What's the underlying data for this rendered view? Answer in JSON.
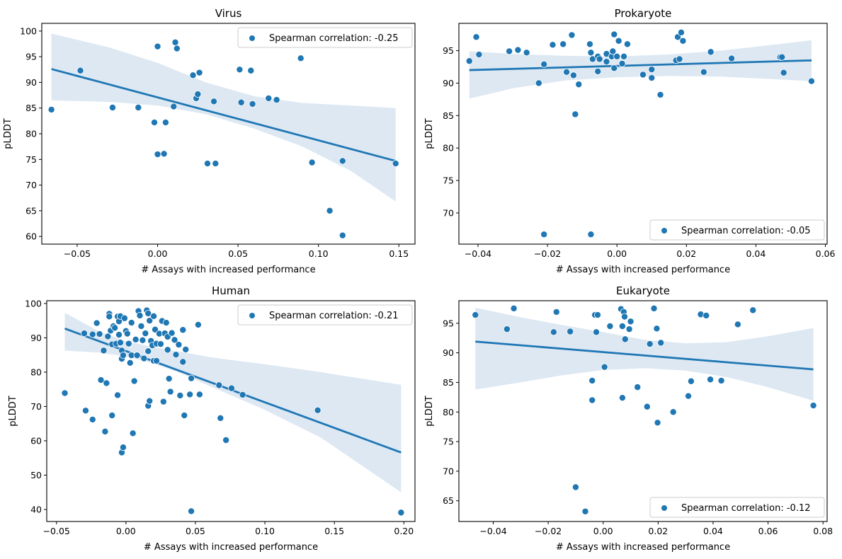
{
  "figure": {
    "point_color": "#1f77b4",
    "band_color": "#dde8f3",
    "line_color": "#1f77b4"
  },
  "chart_data": [
    {
      "type": "scatter",
      "title": "Virus",
      "xlabel": "# Assays with increased performance",
      "ylabel": "pLDDT",
      "xlim": [
        -0.072,
        0.16
      ],
      "ylim": [
        58.5,
        101.5
      ],
      "xticks": [
        -0.05,
        0.0,
        0.05,
        0.1,
        0.15
      ],
      "xtick_labels": [
        "−0.05",
        "0.00",
        "0.05",
        "0.10",
        "0.15"
      ],
      "yticks": [
        60,
        65,
        70,
        75,
        80,
        85,
        90,
        95,
        100
      ],
      "ytick_labels": [
        "60",
        "65",
        "70",
        "75",
        "80",
        "85",
        "90",
        "95",
        "100"
      ],
      "legend": {
        "label": "Spearman correlation: -0.25",
        "position": "upper-right"
      },
      "regression": {
        "x": [
          -0.066,
          0.148
        ],
        "y": [
          92.6,
          74.7
        ]
      },
      "ci_band": {
        "x": [
          -0.066,
          -0.03,
          0.0,
          0.03,
          0.06,
          0.09,
          0.12,
          0.148
        ],
        "lower": [
          86.5,
          86.2,
          85.5,
          83.8,
          81.0,
          77.5,
          72.8,
          66.8
        ],
        "upper": [
          99.5,
          96.8,
          93.8,
          90.0,
          87.3,
          86.0,
          85.5,
          85.0
        ]
      },
      "points": [
        {
          "x": -0.066,
          "y": 84.7
        },
        {
          "x": -0.048,
          "y": 92.3
        },
        {
          "x": -0.028,
          "y": 85.1
        },
        {
          "x": -0.012,
          "y": 85.1
        },
        {
          "x": -0.002,
          "y": 82.2
        },
        {
          "x": 0.0,
          "y": 97.0
        },
        {
          "x": 0.0,
          "y": 76.0
        },
        {
          "x": 0.004,
          "y": 76.1
        },
        {
          "x": 0.005,
          "y": 82.2
        },
        {
          "x": 0.01,
          "y": 85.3
        },
        {
          "x": 0.011,
          "y": 97.8
        },
        {
          "x": 0.012,
          "y": 96.6
        },
        {
          "x": 0.022,
          "y": 91.4
        },
        {
          "x": 0.024,
          "y": 86.9
        },
        {
          "x": 0.025,
          "y": 87.7
        },
        {
          "x": 0.026,
          "y": 91.9
        },
        {
          "x": 0.031,
          "y": 74.2
        },
        {
          "x": 0.035,
          "y": 86.3
        },
        {
          "x": 0.036,
          "y": 74.2
        },
        {
          "x": 0.051,
          "y": 92.5
        },
        {
          "x": 0.052,
          "y": 86.1
        },
        {
          "x": 0.058,
          "y": 92.3
        },
        {
          "x": 0.059,
          "y": 85.8
        },
        {
          "x": 0.069,
          "y": 86.9
        },
        {
          "x": 0.074,
          "y": 86.6
        },
        {
          "x": 0.089,
          "y": 94.7
        },
        {
          "x": 0.096,
          "y": 74.4
        },
        {
          "x": 0.107,
          "y": 65.0
        },
        {
          "x": 0.115,
          "y": 74.7
        },
        {
          "x": 0.115,
          "y": 60.2
        },
        {
          "x": 0.148,
          "y": 74.2
        }
      ]
    },
    {
      "type": "scatter",
      "title": "Prokaryote",
      "xlabel": "# Assays with increased performance",
      "ylabel": "pLDDT",
      "xlim": [
        -0.0455,
        0.0605
      ],
      "ylim": [
        65.2,
        99.2
      ],
      "xticks": [
        -0.04,
        -0.02,
        0.0,
        0.02,
        0.04,
        0.06
      ],
      "xtick_labels": [
        "−0.04",
        "−0.02",
        "0.00",
        "0.02",
        "0.04",
        "0.06"
      ],
      "yticks": [
        70,
        75,
        80,
        85,
        90,
        95
      ],
      "ytick_labels": [
        "70",
        "75",
        "80",
        "85",
        "90",
        "95"
      ],
      "legend": {
        "label": "Spearman correlation: -0.05",
        "position": "lower-right"
      },
      "regression": {
        "x": [
          -0.0425,
          0.056
        ],
        "y": [
          92.0,
          93.5
        ]
      },
      "ci_band": {
        "x": [
          -0.0425,
          -0.03,
          -0.015,
          0.0,
          0.015,
          0.03,
          0.045,
          0.056
        ],
        "lower": [
          87.6,
          89.2,
          90.4,
          90.9,
          91.1,
          91.0,
          90.6,
          90.3
        ],
        "upper": [
          94.9,
          94.5,
          94.2,
          94.1,
          94.4,
          95.0,
          95.9,
          96.6
        ]
      },
      "points": [
        {
          "x": -0.0425,
          "y": 93.4
        },
        {
          "x": -0.0405,
          "y": 97.1
        },
        {
          "x": -0.0397,
          "y": 94.4
        },
        {
          "x": -0.031,
          "y": 94.9
        },
        {
          "x": -0.0285,
          "y": 95.1
        },
        {
          "x": -0.026,
          "y": 94.7
        },
        {
          "x": -0.0225,
          "y": 90.0
        },
        {
          "x": -0.021,
          "y": 92.9
        },
        {
          "x": -0.021,
          "y": 66.7
        },
        {
          "x": -0.0185,
          "y": 95.9
        },
        {
          "x": -0.0155,
          "y": 96.0
        },
        {
          "x": -0.0145,
          "y": 91.7
        },
        {
          "x": -0.013,
          "y": 97.4
        },
        {
          "x": -0.0125,
          "y": 91.2
        },
        {
          "x": -0.012,
          "y": 85.2
        },
        {
          "x": -0.011,
          "y": 89.8
        },
        {
          "x": -0.0078,
          "y": 96.0
        },
        {
          "x": -0.0075,
          "y": 94.7
        },
        {
          "x": -0.007,
          "y": 93.7
        },
        {
          "x": -0.0075,
          "y": 66.7
        },
        {
          "x": -0.0055,
          "y": 94.1
        },
        {
          "x": -0.0055,
          "y": 91.8
        },
        {
          "x": -0.005,
          "y": 93.7
        },
        {
          "x": -0.003,
          "y": 93.3
        },
        {
          "x": -0.003,
          "y": 94.5
        },
        {
          "x": -0.0015,
          "y": 94.1
        },
        {
          "x": -0.0012,
          "y": 94.9
        },
        {
          "x": -0.0008,
          "y": 97.5
        },
        {
          "x": -0.0008,
          "y": 92.3
        },
        {
          "x": 0.0,
          "y": 94.1
        },
        {
          "x": 0.0005,
          "y": 96.5
        },
        {
          "x": 0.0015,
          "y": 93.0
        },
        {
          "x": 0.002,
          "y": 94.1
        },
        {
          "x": 0.003,
          "y": 96.0
        },
        {
          "x": 0.0075,
          "y": 91.3
        },
        {
          "x": 0.01,
          "y": 92.1
        },
        {
          "x": 0.01,
          "y": 90.8
        },
        {
          "x": 0.0125,
          "y": 88.2
        },
        {
          "x": 0.017,
          "y": 93.5
        },
        {
          "x": 0.0175,
          "y": 97.1
        },
        {
          "x": 0.018,
          "y": 93.7
        },
        {
          "x": 0.0185,
          "y": 97.8
        },
        {
          "x": 0.019,
          "y": 96.5
        },
        {
          "x": 0.025,
          "y": 91.7
        },
        {
          "x": 0.027,
          "y": 94.8
        },
        {
          "x": 0.033,
          "y": 93.8
        },
        {
          "x": 0.047,
          "y": 94.0
        },
        {
          "x": 0.0475,
          "y": 94.0
        },
        {
          "x": 0.048,
          "y": 91.6
        },
        {
          "x": 0.056,
          "y": 90.3
        }
      ]
    },
    {
      "type": "scatter",
      "title": "Human",
      "xlabel": "# Assays with increased performance",
      "ylabel": "pLDDT",
      "xlim": [
        -0.057,
        0.208
      ],
      "ylim": [
        36.5,
        100.8
      ],
      "xticks": [
        -0.05,
        0.0,
        0.05,
        0.1,
        0.15,
        0.2
      ],
      "xtick_labels": [
        "−0.05",
        "0.00",
        "0.05",
        "0.10",
        "0.15",
        "0.20"
      ],
      "yticks": [
        40,
        50,
        60,
        70,
        80,
        90,
        100
      ],
      "ytick_labels": [
        "40",
        "50",
        "60",
        "70",
        "80",
        "90",
        "100"
      ],
      "legend": {
        "label": "Spearman correlation: -0.21",
        "position": "upper-right"
      },
      "regression": {
        "x": [
          -0.044,
          0.198
        ],
        "y": [
          92.7,
          56.6
        ]
      },
      "ci_band": {
        "x": [
          -0.044,
          -0.02,
          0.0,
          0.02,
          0.04,
          0.06,
          0.08,
          0.1,
          0.14,
          0.198
        ],
        "lower": [
          86.3,
          85.7,
          84.6,
          82.5,
          79.6,
          76.0,
          72.5,
          69.0,
          61.0,
          45.0
        ],
        "upper": [
          97.3,
          92.0,
          89.0,
          87.3,
          85.9,
          84.4,
          83.3,
          82.3,
          80.0,
          76.3
        ]
      },
      "points": [
        {
          "x": -0.044,
          "y": 73.9
        },
        {
          "x": -0.03,
          "y": 91.3
        },
        {
          "x": -0.029,
          "y": 68.8
        },
        {
          "x": -0.024,
          "y": 91.0
        },
        {
          "x": -0.024,
          "y": 66.2
        },
        {
          "x": -0.021,
          "y": 94.3
        },
        {
          "x": -0.019,
          "y": 91.1
        },
        {
          "x": -0.018,
          "y": 77.7
        },
        {
          "x": -0.016,
          "y": 86.3
        },
        {
          "x": -0.015,
          "y": 62.7
        },
        {
          "x": -0.014,
          "y": 76.8
        },
        {
          "x": -0.013,
          "y": 90.4
        },
        {
          "x": -0.012,
          "y": 97.0
        },
        {
          "x": -0.012,
          "y": 96.2
        },
        {
          "x": -0.011,
          "y": 92.1
        },
        {
          "x": -0.01,
          "y": 88.1
        },
        {
          "x": -0.01,
          "y": 67.4
        },
        {
          "x": -0.009,
          "y": 93.4
        },
        {
          "x": -0.008,
          "y": 92.9
        },
        {
          "x": -0.007,
          "y": 88.3
        },
        {
          "x": -0.006,
          "y": 96.2
        },
        {
          "x": -0.006,
          "y": 73.3
        },
        {
          "x": -0.005,
          "y": 94.8
        },
        {
          "x": -0.005,
          "y": 90.9
        },
        {
          "x": -0.004,
          "y": 88.6
        },
        {
          "x": -0.004,
          "y": 96.3
        },
        {
          "x": -0.003,
          "y": 86.3
        },
        {
          "x": -0.003,
          "y": 83.9
        },
        {
          "x": -0.002,
          "y": 84.9
        },
        {
          "x": -0.003,
          "y": 56.6
        },
        {
          "x": -0.002,
          "y": 58.1
        },
        {
          "x": -0.001,
          "y": 95.7
        },
        {
          "x": 0.0,
          "y": 92.0
        },
        {
          "x": 0.001,
          "y": 91.2
        },
        {
          "x": 0.002,
          "y": 88.3
        },
        {
          "x": 0.003,
          "y": 82.7
        },
        {
          "x": 0.004,
          "y": 94.4
        },
        {
          "x": 0.004,
          "y": 84.9
        },
        {
          "x": 0.005,
          "y": 62.2
        },
        {
          "x": 0.006,
          "y": 77.4
        },
        {
          "x": 0.007,
          "y": 89.5
        },
        {
          "x": 0.008,
          "y": 84.9
        },
        {
          "x": 0.009,
          "y": 97.8
        },
        {
          "x": 0.01,
          "y": 96.5
        },
        {
          "x": 0.011,
          "y": 93.4
        },
        {
          "x": 0.012,
          "y": 89.3
        },
        {
          "x": 0.013,
          "y": 84.0
        },
        {
          "x": 0.014,
          "y": 91.3
        },
        {
          "x": 0.015,
          "y": 98.0
        },
        {
          "x": 0.016,
          "y": 97.1
        },
        {
          "x": 0.016,
          "y": 86.1
        },
        {
          "x": 0.016,
          "y": 70.2
        },
        {
          "x": 0.017,
          "y": 71.6
        },
        {
          "x": 0.017,
          "y": 95.0
        },
        {
          "x": 0.018,
          "y": 89.1
        },
        {
          "x": 0.019,
          "y": 87.8
        },
        {
          "x": 0.02,
          "y": 83.3
        },
        {
          "x": 0.02,
          "y": 96.3
        },
        {
          "x": 0.021,
          "y": 92.4
        },
        {
          "x": 0.022,
          "y": 88.3
        },
        {
          "x": 0.022,
          "y": 83.3
        },
        {
          "x": 0.024,
          "y": 91.2
        },
        {
          "x": 0.025,
          "y": 88.2
        },
        {
          "x": 0.026,
          "y": 94.9
        },
        {
          "x": 0.027,
          "y": 71.4
        },
        {
          "x": 0.028,
          "y": 91.3
        },
        {
          "x": 0.029,
          "y": 94.4
        },
        {
          "x": 0.03,
          "y": 90.3
        },
        {
          "x": 0.03,
          "y": 86.5
        },
        {
          "x": 0.031,
          "y": 78.1
        },
        {
          "x": 0.032,
          "y": 74.3
        },
        {
          "x": 0.033,
          "y": 91.4
        },
        {
          "x": 0.035,
          "y": 89.4
        },
        {
          "x": 0.036,
          "y": 85.1
        },
        {
          "x": 0.038,
          "y": 88.0
        },
        {
          "x": 0.039,
          "y": 73.2
        },
        {
          "x": 0.041,
          "y": 92.3
        },
        {
          "x": 0.041,
          "y": 83.0
        },
        {
          "x": 0.042,
          "y": 67.4
        },
        {
          "x": 0.043,
          "y": 86.6
        },
        {
          "x": 0.046,
          "y": 73.5
        },
        {
          "x": 0.047,
          "y": 78.2
        },
        {
          "x": 0.047,
          "y": 39.5
        },
        {
          "x": 0.052,
          "y": 93.8
        },
        {
          "x": 0.053,
          "y": 73.5
        },
        {
          "x": 0.067,
          "y": 76.2
        },
        {
          "x": 0.068,
          "y": 66.6
        },
        {
          "x": 0.072,
          "y": 60.2
        },
        {
          "x": 0.076,
          "y": 75.3
        },
        {
          "x": 0.084,
          "y": 73.4
        },
        {
          "x": 0.138,
          "y": 68.9
        },
        {
          "x": 0.198,
          "y": 39.1
        }
      ]
    },
    {
      "type": "scatter",
      "title": "Eukaryote",
      "xlabel": "# Assays with increased performance",
      "ylabel": "pLDDT",
      "xlim": [
        -0.0525,
        0.0815
      ],
      "ylim": [
        61.5,
        98.8
      ],
      "xticks": [
        -0.04,
        -0.02,
        0.0,
        0.02,
        0.04,
        0.06,
        0.08
      ],
      "xtick_labels": [
        "−0.04",
        "−0.02",
        "0.00",
        "0.02",
        "0.04",
        "0.06",
        "0.08"
      ],
      "yticks": [
        65,
        70,
        75,
        80,
        85,
        90,
        95
      ],
      "ytick_labels": [
        "65",
        "70",
        "75",
        "80",
        "85",
        "90",
        "95"
      ],
      "legend": {
        "label": "Spearman correlation: -0.12",
        "position": "lower-right"
      },
      "regression": {
        "x": [
          -0.0465,
          0.0765
        ],
        "y": [
          91.9,
          87.2
        ]
      },
      "ci_band": {
        "x": [
          -0.0465,
          -0.03,
          -0.015,
          0.0,
          0.015,
          0.03,
          0.045,
          0.06,
          0.0765
        ],
        "lower": [
          83.8,
          85.0,
          86.2,
          87.1,
          87.4,
          87.0,
          85.9,
          84.2,
          81.9
        ],
        "upper": [
          97.6,
          96.0,
          94.7,
          93.5,
          92.2,
          91.6,
          91.8,
          92.8,
          94.2
        ]
      },
      "points": [
        {
          "x": -0.0465,
          "y": 96.4
        },
        {
          "x": -0.035,
          "y": 94.0
        },
        {
          "x": -0.0325,
          "y": 97.5
        },
        {
          "x": -0.018,
          "y": 93.5
        },
        {
          "x": -0.017,
          "y": 96.9
        },
        {
          "x": -0.012,
          "y": 93.6
        },
        {
          "x": -0.01,
          "y": 67.3
        },
        {
          "x": -0.0065,
          "y": 63.2
        },
        {
          "x": -0.004,
          "y": 85.3
        },
        {
          "x": -0.004,
          "y": 82.0
        },
        {
          "x": -0.003,
          "y": 96.4
        },
        {
          "x": -0.002,
          "y": 96.4
        },
        {
          "x": -0.0025,
          "y": 93.5
        },
        {
          "x": 0.0005,
          "y": 87.6
        },
        {
          "x": 0.0025,
          "y": 94.5
        },
        {
          "x": 0.0065,
          "y": 97.4
        },
        {
          "x": 0.007,
          "y": 94.5
        },
        {
          "x": 0.007,
          "y": 82.4
        },
        {
          "x": 0.0075,
          "y": 96.9
        },
        {
          "x": 0.0078,
          "y": 96.1
        },
        {
          "x": 0.008,
          "y": 92.3
        },
        {
          "x": 0.0095,
          "y": 94.0
        },
        {
          "x": 0.01,
          "y": 95.3
        },
        {
          "x": 0.0125,
          "y": 84.2
        },
        {
          "x": 0.016,
          "y": 80.9
        },
        {
          "x": 0.017,
          "y": 91.5
        },
        {
          "x": 0.0185,
          "y": 97.5
        },
        {
          "x": 0.0195,
          "y": 94.1
        },
        {
          "x": 0.0198,
          "y": 78.2
        },
        {
          "x": 0.021,
          "y": 91.7
        },
        {
          "x": 0.0255,
          "y": 80.0
        },
        {
          "x": 0.031,
          "y": 82.7
        },
        {
          "x": 0.032,
          "y": 85.2
        },
        {
          "x": 0.0355,
          "y": 96.5
        },
        {
          "x": 0.0375,
          "y": 96.3
        },
        {
          "x": 0.039,
          "y": 85.5
        },
        {
          "x": 0.043,
          "y": 85.3
        },
        {
          "x": 0.049,
          "y": 94.8
        },
        {
          "x": 0.0545,
          "y": 97.2
        },
        {
          "x": 0.0765,
          "y": 81.1
        }
      ]
    }
  ]
}
